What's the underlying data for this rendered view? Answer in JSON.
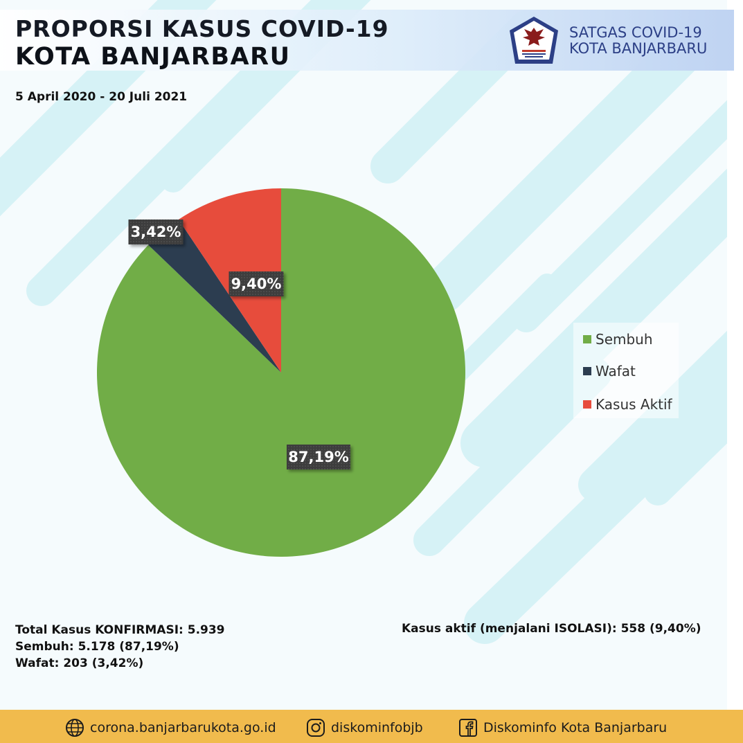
{
  "header": {
    "title_line1": "PROPORSI KASUS COVID-19",
    "title_line2": "KOTA BANJARBARU",
    "date_range": "5 April 2020 - 20 Juli 2021",
    "org_line1": "SATGAS COVID-19",
    "org_line2": "KOTA BANJARBARU",
    "logo_icon": "garuda-emblem-icon"
  },
  "chart_data": {
    "type": "pie",
    "categories": [
      "Sembuh",
      "Wafat",
      "Kasus Aktif"
    ],
    "values": [
      87.19,
      3.42,
      9.4
    ],
    "labels": [
      "87,19%",
      "3,42%",
      "9,40%"
    ],
    "colors": [
      "#71ad47",
      "#2c3d50",
      "#e74c3c"
    ],
    "legend_position": "right"
  },
  "stats": {
    "total": "Total Kasus KONFIRMASI: 5.939",
    "sembuh": "Sembuh: 5.178 (87,19%)",
    "wafat": "Wafat: 203 (3,42%)",
    "aktif": "Kasus aktif (menjalani ISOLASI): 558 (9,40%)"
  },
  "footer": {
    "website": "corona.banjarbarukota.go.id",
    "instagram": "diskominfobjb",
    "facebook": "Diskominfo Kota Banjarbaru",
    "icons": [
      "globe-icon",
      "instagram-icon",
      "facebook-icon"
    ]
  }
}
